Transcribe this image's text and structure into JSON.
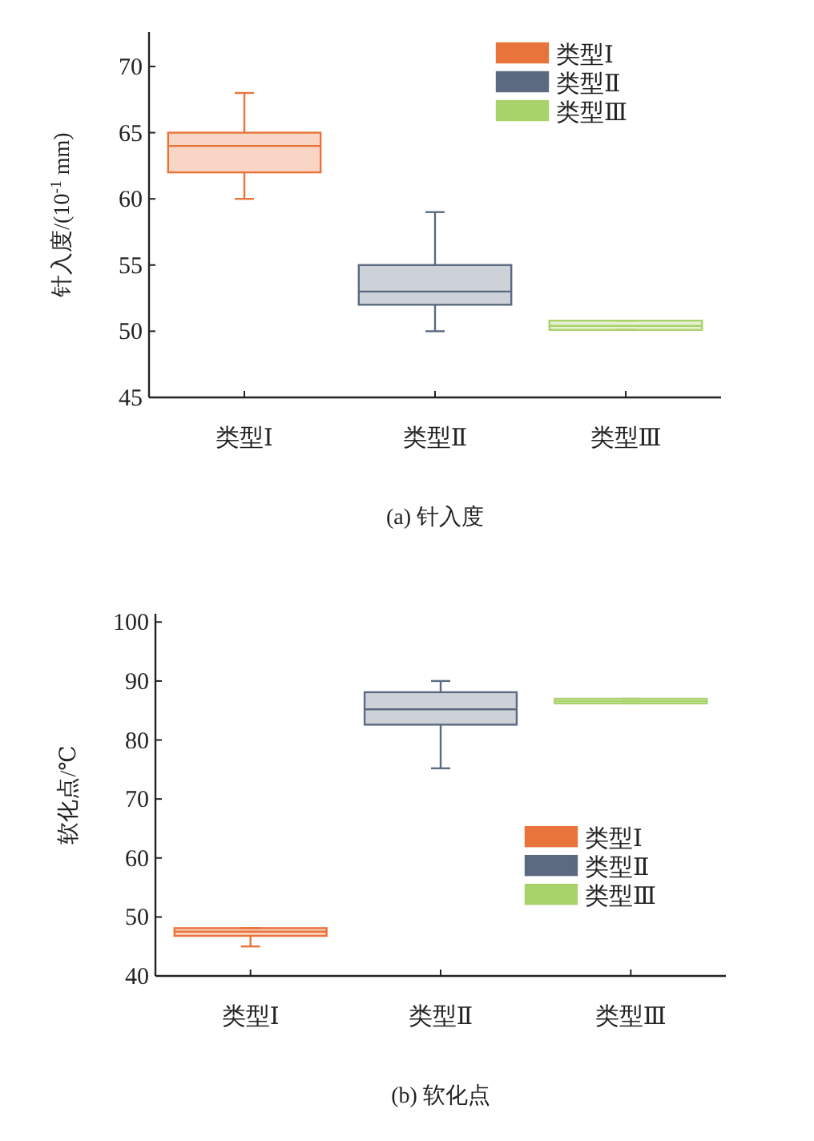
{
  "chart_data": [
    {
      "type": "box",
      "title": "(a) 针入度",
      "ylabel": "针入度/(10$^{-1}$ mm)",
      "categories": [
        "类型Ⅰ",
        "类型Ⅱ",
        "类型Ⅲ"
      ],
      "ylim": [
        45,
        72.6
      ],
      "yticks": [
        45,
        50,
        55,
        60,
        65,
        70
      ],
      "legend": "top right",
      "series": [
        {
          "name": "类型Ⅰ",
          "color": "#e8743b",
          "boxes": [
            {
              "low": 60,
              "q1": 62,
              "median": 64,
              "q3": 65,
              "high": 68
            },
            null,
            null
          ]
        },
        {
          "name": "类型Ⅱ",
          "color": "#5b6a80",
          "boxes": [
            null,
            {
              "low": 50,
              "q1": 52,
              "median": 53,
              "q3": 55,
              "high": 59
            },
            null
          ]
        },
        {
          "name": "类型Ⅲ",
          "color": "#a8d26a",
          "boxes": [
            null,
            null,
            {
              "low": 50.1,
              "q1": 50.1,
              "median": 50.4,
              "q3": 50.8,
              "high": 50.8
            }
          ]
        }
      ]
    },
    {
      "type": "box",
      "title": "(b) 软化点",
      "ylabel": "软化点/℃",
      "categories": [
        "类型Ⅰ",
        "类型Ⅱ",
        "类型Ⅲ"
      ],
      "ylim": [
        40,
        101.4
      ],
      "yticks": [
        40,
        50,
        60,
        70,
        80,
        90,
        100
      ],
      "legend": "right",
      "series": [
        {
          "name": "类型Ⅰ",
          "color": "#e8743b",
          "boxes": [
            {
              "low": 45,
              "q1": 46.8,
              "median": 47.5,
              "q3": 48.1,
              "high": 48.1
            },
            null,
            null
          ]
        },
        {
          "name": "类型Ⅱ",
          "color": "#5b6a80",
          "boxes": [
            null,
            {
              "low": 75.2,
              "q1": 82.6,
              "median": 85.2,
              "q3": 88.1,
              "high": 90
            },
            null
          ]
        },
        {
          "name": "类型Ⅲ",
          "color": "#a8d26a",
          "boxes": [
            null,
            null,
            {
              "low": 86.2,
              "q1": 86.2,
              "median": 86.6,
              "q3": 87,
              "high": 87
            }
          ]
        }
      ]
    }
  ]
}
